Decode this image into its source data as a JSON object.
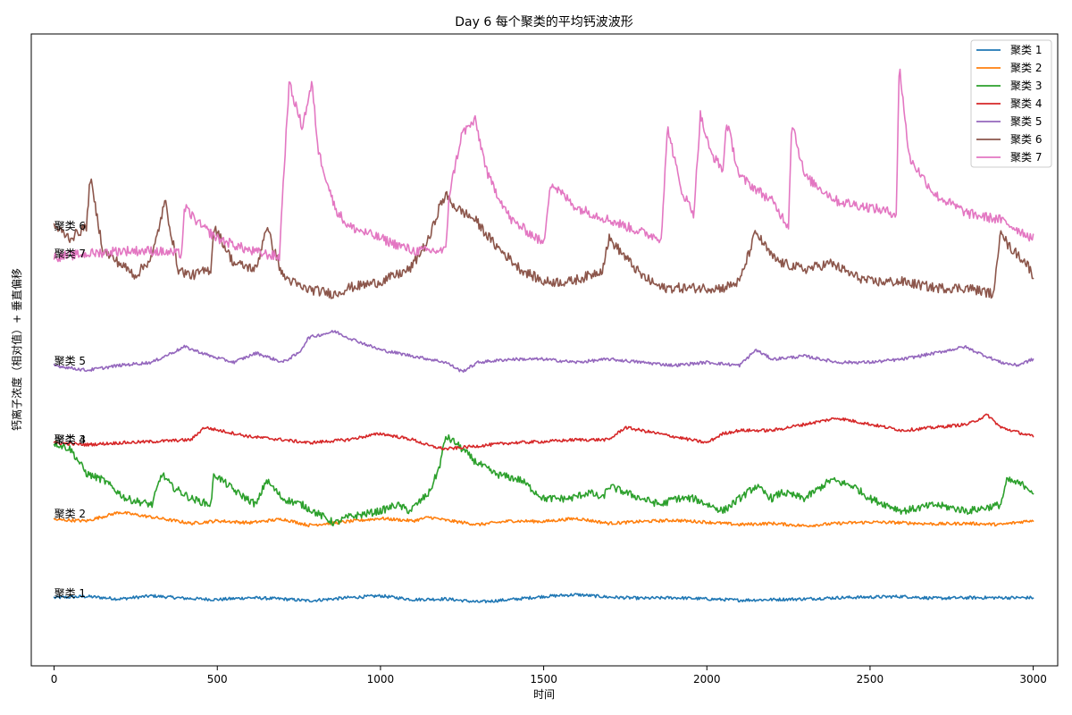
{
  "chart_data": {
    "type": "line",
    "title": "Day 6 每个聚类的平均钙波波形",
    "xlabel": "时间",
    "ylabel": "钙离子浓度（相对值）+ 垂直偏移",
    "xlim": [
      -70,
      3075
    ],
    "ylim": [
      -0.6,
      9.6
    ],
    "x_ticks": [
      0,
      500,
      1000,
      1500,
      2000,
      2500,
      3000
    ],
    "grid": false,
    "legend_position": "top-right",
    "series": [
      {
        "name": "聚类 1",
        "color": "#1f77b4",
        "offset": 0.5,
        "points": [
          [
            0,
            0.5
          ],
          [
            100,
            0.52
          ],
          [
            200,
            0.48
          ],
          [
            300,
            0.53
          ],
          [
            400,
            0.49
          ],
          [
            500,
            0.47
          ],
          [
            600,
            0.5
          ],
          [
            700,
            0.48
          ],
          [
            780,
            0.45
          ],
          [
            900,
            0.5
          ],
          [
            1000,
            0.53
          ],
          [
            1100,
            0.47
          ],
          [
            1200,
            0.48
          ],
          [
            1300,
            0.43
          ],
          [
            1400,
            0.47
          ],
          [
            1500,
            0.52
          ],
          [
            1600,
            0.55
          ],
          [
            1700,
            0.51
          ],
          [
            1800,
            0.49
          ],
          [
            1900,
            0.5
          ],
          [
            2000,
            0.48
          ],
          [
            2100,
            0.46
          ],
          [
            2200,
            0.47
          ],
          [
            2300,
            0.48
          ],
          [
            2400,
            0.5
          ],
          [
            2500,
            0.51
          ],
          [
            2600,
            0.52
          ],
          [
            2700,
            0.49
          ],
          [
            2800,
            0.5
          ],
          [
            2900,
            0.5
          ],
          [
            3000,
            0.5
          ]
        ]
      },
      {
        "name": "聚类 2",
        "color": "#ff7f0e",
        "offset": 1.75,
        "points": [
          [
            0,
            1.76
          ],
          [
            100,
            1.74
          ],
          [
            200,
            1.88
          ],
          [
            300,
            1.8
          ],
          [
            420,
            1.7
          ],
          [
            500,
            1.74
          ],
          [
            600,
            1.71
          ],
          [
            700,
            1.77
          ],
          [
            780,
            1.67
          ],
          [
            900,
            1.73
          ],
          [
            1000,
            1.78
          ],
          [
            1100,
            1.74
          ],
          [
            1150,
            1.8
          ],
          [
            1200,
            1.75
          ],
          [
            1300,
            1.68
          ],
          [
            1400,
            1.74
          ],
          [
            1500,
            1.73
          ],
          [
            1600,
            1.78
          ],
          [
            1700,
            1.7
          ],
          [
            1800,
            1.73
          ],
          [
            1900,
            1.75
          ],
          [
            2000,
            1.72
          ],
          [
            2100,
            1.68
          ],
          [
            2200,
            1.7
          ],
          [
            2300,
            1.66
          ],
          [
            2400,
            1.7
          ],
          [
            2500,
            1.72
          ],
          [
            2600,
            1.71
          ],
          [
            2700,
            1.69
          ],
          [
            2800,
            1.7
          ],
          [
            2900,
            1.68
          ],
          [
            3000,
            1.75
          ]
        ]
      },
      {
        "name": "聚类 3",
        "color": "#2ca02c",
        "offset": 3.0,
        "points": [
          [
            0,
            3.0
          ],
          [
            50,
            2.9
          ],
          [
            100,
            2.5
          ],
          [
            150,
            2.4
          ],
          [
            220,
            2.1
          ],
          [
            300,
            2.0
          ],
          [
            330,
            2.5
          ],
          [
            360,
            2.3
          ],
          [
            420,
            2.1
          ],
          [
            480,
            2.0
          ],
          [
            490,
            2.5
          ],
          [
            560,
            2.2
          ],
          [
            620,
            2.0
          ],
          [
            650,
            2.4
          ],
          [
            700,
            2.1
          ],
          [
            760,
            2.0
          ],
          [
            860,
            1.7
          ],
          [
            900,
            1.8
          ],
          [
            1000,
            1.9
          ],
          [
            1050,
            2.0
          ],
          [
            1090,
            1.9
          ],
          [
            1150,
            2.2
          ],
          [
            1180,
            2.6
          ],
          [
            1200,
            3.1
          ],
          [
            1230,
            3.0
          ],
          [
            1290,
            2.7
          ],
          [
            1350,
            2.5
          ],
          [
            1430,
            2.4
          ],
          [
            1500,
            2.1
          ],
          [
            1580,
            2.1
          ],
          [
            1640,
            2.2
          ],
          [
            1680,
            2.1
          ],
          [
            1700,
            2.3
          ],
          [
            1800,
            2.1
          ],
          [
            1860,
            2.0
          ],
          [
            1900,
            2.1
          ],
          [
            1960,
            2.1
          ],
          [
            2050,
            1.9
          ],
          [
            2100,
            2.1
          ],
          [
            2150,
            2.3
          ],
          [
            2200,
            2.1
          ],
          [
            2230,
            2.2
          ],
          [
            2300,
            2.1
          ],
          [
            2380,
            2.4
          ],
          [
            2450,
            2.3
          ],
          [
            2500,
            2.1
          ],
          [
            2600,
            1.9
          ],
          [
            2700,
            2.0
          ],
          [
            2800,
            1.9
          ],
          [
            2900,
            2.0
          ],
          [
            2920,
            2.4
          ],
          [
            2980,
            2.3
          ],
          [
            3000,
            2.2
          ]
        ]
      },
      {
        "name": "聚类 4",
        "color": "#d62728",
        "offset": 3.0,
        "points": [
          [
            0,
            3.0
          ],
          [
            100,
            2.97
          ],
          [
            200,
            3.0
          ],
          [
            300,
            3.02
          ],
          [
            420,
            3.05
          ],
          [
            460,
            3.25
          ],
          [
            600,
            3.1
          ],
          [
            700,
            3.05
          ],
          [
            780,
            3.0
          ],
          [
            900,
            3.05
          ],
          [
            1000,
            3.15
          ],
          [
            1100,
            3.05
          ],
          [
            1150,
            2.95
          ],
          [
            1200,
            2.9
          ],
          [
            1300,
            2.95
          ],
          [
            1400,
            3.0
          ],
          [
            1500,
            3.02
          ],
          [
            1600,
            3.05
          ],
          [
            1700,
            3.05
          ],
          [
            1750,
            3.25
          ],
          [
            1850,
            3.15
          ],
          [
            1950,
            3.05
          ],
          [
            2000,
            3.0
          ],
          [
            2050,
            3.15
          ],
          [
            2100,
            3.2
          ],
          [
            2200,
            3.2
          ],
          [
            2300,
            3.3
          ],
          [
            2400,
            3.4
          ],
          [
            2500,
            3.3
          ],
          [
            2600,
            3.2
          ],
          [
            2700,
            3.25
          ],
          [
            2800,
            3.3
          ],
          [
            2860,
            3.45
          ],
          [
            2900,
            3.25
          ],
          [
            3000,
            3.1
          ]
        ]
      },
      {
        "name": "聚类 5",
        "color": "#9467bd",
        "offset": 4.25,
        "points": [
          [
            0,
            4.25
          ],
          [
            100,
            4.17
          ],
          [
            200,
            4.25
          ],
          [
            300,
            4.3
          ],
          [
            400,
            4.55
          ],
          [
            480,
            4.4
          ],
          [
            550,
            4.3
          ],
          [
            620,
            4.45
          ],
          [
            700,
            4.3
          ],
          [
            750,
            4.45
          ],
          [
            780,
            4.7
          ],
          [
            860,
            4.8
          ],
          [
            900,
            4.7
          ],
          [
            1000,
            4.5
          ],
          [
            1100,
            4.4
          ],
          [
            1200,
            4.3
          ],
          [
            1250,
            4.15
          ],
          [
            1300,
            4.3
          ],
          [
            1400,
            4.35
          ],
          [
            1500,
            4.35
          ],
          [
            1600,
            4.3
          ],
          [
            1700,
            4.35
          ],
          [
            1800,
            4.3
          ],
          [
            1900,
            4.25
          ],
          [
            2000,
            4.3
          ],
          [
            2100,
            4.25
          ],
          [
            2150,
            4.5
          ],
          [
            2200,
            4.35
          ],
          [
            2300,
            4.4
          ],
          [
            2400,
            4.3
          ],
          [
            2500,
            4.3
          ],
          [
            2600,
            4.35
          ],
          [
            2700,
            4.45
          ],
          [
            2790,
            4.55
          ],
          [
            2900,
            4.3
          ],
          [
            2950,
            4.25
          ],
          [
            3000,
            4.35
          ]
        ]
      },
      {
        "name": "聚类 6",
        "color": "#8c564b",
        "offset": 6.5,
        "points": [
          [
            0,
            6.5
          ],
          [
            50,
            6.3
          ],
          [
            100,
            6.5
          ],
          [
            110,
            7.3
          ],
          [
            150,
            6.1
          ],
          [
            200,
            5.9
          ],
          [
            250,
            5.7
          ],
          [
            300,
            6.0
          ],
          [
            340,
            6.9
          ],
          [
            380,
            5.8
          ],
          [
            420,
            5.7
          ],
          [
            480,
            5.8
          ],
          [
            490,
            6.5
          ],
          [
            550,
            5.9
          ],
          [
            620,
            5.8
          ],
          [
            650,
            6.5
          ],
          [
            700,
            5.7
          ],
          [
            760,
            5.5
          ],
          [
            860,
            5.4
          ],
          [
            900,
            5.5
          ],
          [
            1000,
            5.6
          ],
          [
            1090,
            5.8
          ],
          [
            1150,
            6.3
          ],
          [
            1180,
            6.8
          ],
          [
            1200,
            7.0
          ],
          [
            1230,
            6.8
          ],
          [
            1290,
            6.6
          ],
          [
            1350,
            6.2
          ],
          [
            1430,
            5.8
          ],
          [
            1500,
            5.6
          ],
          [
            1580,
            5.6
          ],
          [
            1640,
            5.7
          ],
          [
            1680,
            5.8
          ],
          [
            1700,
            6.3
          ],
          [
            1800,
            5.7
          ],
          [
            1860,
            5.5
          ],
          [
            1900,
            5.5
          ],
          [
            1960,
            5.5
          ],
          [
            2050,
            5.5
          ],
          [
            2100,
            5.6
          ],
          [
            2150,
            6.4
          ],
          [
            2200,
            6.0
          ],
          [
            2230,
            5.9
          ],
          [
            2300,
            5.8
          ],
          [
            2380,
            5.9
          ],
          [
            2450,
            5.7
          ],
          [
            2500,
            5.6
          ],
          [
            2600,
            5.6
          ],
          [
            2700,
            5.5
          ],
          [
            2800,
            5.5
          ],
          [
            2880,
            5.4
          ],
          [
            2900,
            6.5
          ],
          [
            2920,
            6.2
          ],
          [
            2980,
            5.9
          ],
          [
            3000,
            5.7
          ]
        ]
      },
      {
        "name": "聚类 7",
        "color": "#e377c2",
        "offset": 6.0,
        "points": [
          [
            0,
            6.0
          ],
          [
            100,
            6.05
          ],
          [
            200,
            6.1
          ],
          [
            300,
            6.1
          ],
          [
            390,
            6.05
          ],
          [
            400,
            6.8
          ],
          [
            450,
            6.5
          ],
          [
            500,
            6.3
          ],
          [
            600,
            6.1
          ],
          [
            690,
            6.0
          ],
          [
            700,
            7.0
          ],
          [
            720,
            8.8
          ],
          [
            760,
            8.1
          ],
          [
            790,
            8.8
          ],
          [
            810,
            7.7
          ],
          [
            860,
            6.8
          ],
          [
            900,
            6.5
          ],
          [
            1000,
            6.3
          ],
          [
            1100,
            6.1
          ],
          [
            1200,
            6.1
          ],
          [
            1210,
            7.0
          ],
          [
            1250,
            8.0
          ],
          [
            1290,
            8.2
          ],
          [
            1330,
            7.3
          ],
          [
            1400,
            6.6
          ],
          [
            1480,
            6.3
          ],
          [
            1500,
            6.2
          ],
          [
            1520,
            7.2
          ],
          [
            1600,
            6.8
          ],
          [
            1700,
            6.6
          ],
          [
            1800,
            6.4
          ],
          [
            1860,
            6.3
          ],
          [
            1880,
            8.1
          ],
          [
            1920,
            7.1
          ],
          [
            1960,
            6.7
          ],
          [
            1980,
            8.3
          ],
          [
            2010,
            7.7
          ],
          [
            2050,
            7.4
          ],
          [
            2060,
            8.2
          ],
          [
            2100,
            7.3
          ],
          [
            2200,
            6.9
          ],
          [
            2250,
            6.5
          ],
          [
            2260,
            8.2
          ],
          [
            2300,
            7.3
          ],
          [
            2400,
            6.9
          ],
          [
            2500,
            6.8
          ],
          [
            2580,
            6.7
          ],
          [
            2590,
            9.1
          ],
          [
            2620,
            7.6
          ],
          [
            2700,
            7.0
          ],
          [
            2800,
            6.7
          ],
          [
            2900,
            6.6
          ],
          [
            3000,
            6.3
          ]
        ]
      }
    ],
    "inline_labels": [
      {
        "text": "聚类 1",
        "y": 0.57
      },
      {
        "text": "聚类 2",
        "y": 1.85
      },
      {
        "text": "聚类 3",
        "y": 3.05
      },
      {
        "text": "聚类 4",
        "y": 3.05
      },
      {
        "text": "聚类 5",
        "y": 4.32
      },
      {
        "text": "聚类 6",
        "y": 6.5
      },
      {
        "text": "聚类 7",
        "y": 6.05
      }
    ]
  }
}
